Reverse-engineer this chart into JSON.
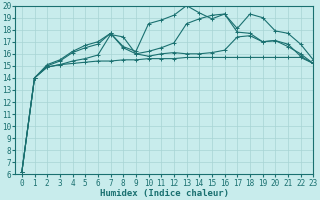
{
  "title": "",
  "xlabel": "Humidex (Indice chaleur)",
  "ylabel": "",
  "bg_color": "#c8ecec",
  "grid_color": "#a8d4d4",
  "line_color": "#1a7070",
  "xlim": [
    -0.5,
    23
  ],
  "ylim": [
    6,
    20
  ],
  "xticks": [
    0,
    1,
    2,
    3,
    4,
    5,
    6,
    7,
    8,
    9,
    10,
    11,
    12,
    13,
    14,
    15,
    16,
    17,
    18,
    19,
    20,
    21,
    22,
    23
  ],
  "yticks": [
    6,
    7,
    8,
    9,
    10,
    11,
    12,
    13,
    14,
    15,
    16,
    17,
    18,
    19,
    20
  ],
  "line1_x": [
    0,
    1,
    2,
    3,
    4,
    5,
    6,
    7,
    8,
    9,
    10,
    11,
    12,
    13,
    14,
    15,
    16,
    17,
    18,
    19,
    20,
    21,
    22,
    23
  ],
  "line1_y": [
    6.2,
    14.0,
    14.9,
    15.1,
    15.2,
    15.3,
    15.4,
    15.4,
    15.5,
    15.5,
    15.6,
    15.6,
    15.6,
    15.7,
    15.7,
    15.7,
    15.7,
    15.7,
    15.7,
    15.7,
    15.7,
    15.7,
    15.7,
    15.2
  ],
  "line2_x": [
    0,
    1,
    2,
    3,
    4,
    5,
    6,
    7,
    8,
    9,
    10,
    11,
    12,
    13,
    14,
    15,
    16,
    17,
    18,
    19,
    20,
    21,
    22,
    23
  ],
  "line2_y": [
    6.2,
    14.0,
    14.9,
    15.1,
    15.4,
    15.6,
    15.9,
    17.6,
    17.4,
    16.0,
    15.8,
    16.0,
    16.1,
    16.0,
    16.0,
    16.1,
    16.3,
    17.4,
    17.5,
    17.0,
    17.1,
    16.6,
    16.0,
    15.2
  ],
  "line3_x": [
    0,
    1,
    2,
    3,
    4,
    5,
    6,
    7,
    8,
    9,
    10,
    11,
    12,
    13,
    14,
    15,
    16,
    17,
    18,
    19,
    20,
    21,
    22,
    23
  ],
  "line3_y": [
    6.2,
    14.0,
    15.0,
    15.4,
    16.1,
    16.5,
    16.8,
    17.7,
    16.5,
    16.0,
    16.2,
    16.5,
    16.9,
    18.5,
    18.9,
    19.2,
    19.3,
    17.8,
    17.7,
    17.0,
    17.1,
    16.8,
    15.8,
    15.2
  ],
  "line4_x": [
    0,
    1,
    2,
    3,
    4,
    5,
    6,
    7,
    8,
    9,
    10,
    11,
    12,
    13,
    14,
    15,
    16,
    17,
    18,
    19,
    20,
    21,
    22,
    23
  ],
  "line4_y": [
    6.2,
    14.0,
    15.1,
    15.5,
    16.2,
    16.7,
    17.0,
    17.7,
    16.6,
    16.2,
    18.5,
    18.8,
    19.2,
    20.0,
    19.4,
    18.9,
    19.3,
    18.1,
    19.3,
    19.0,
    17.9,
    17.7,
    16.8,
    15.5
  ],
  "tick_fontsize": 5.5,
  "xlabel_fontsize": 6.5
}
